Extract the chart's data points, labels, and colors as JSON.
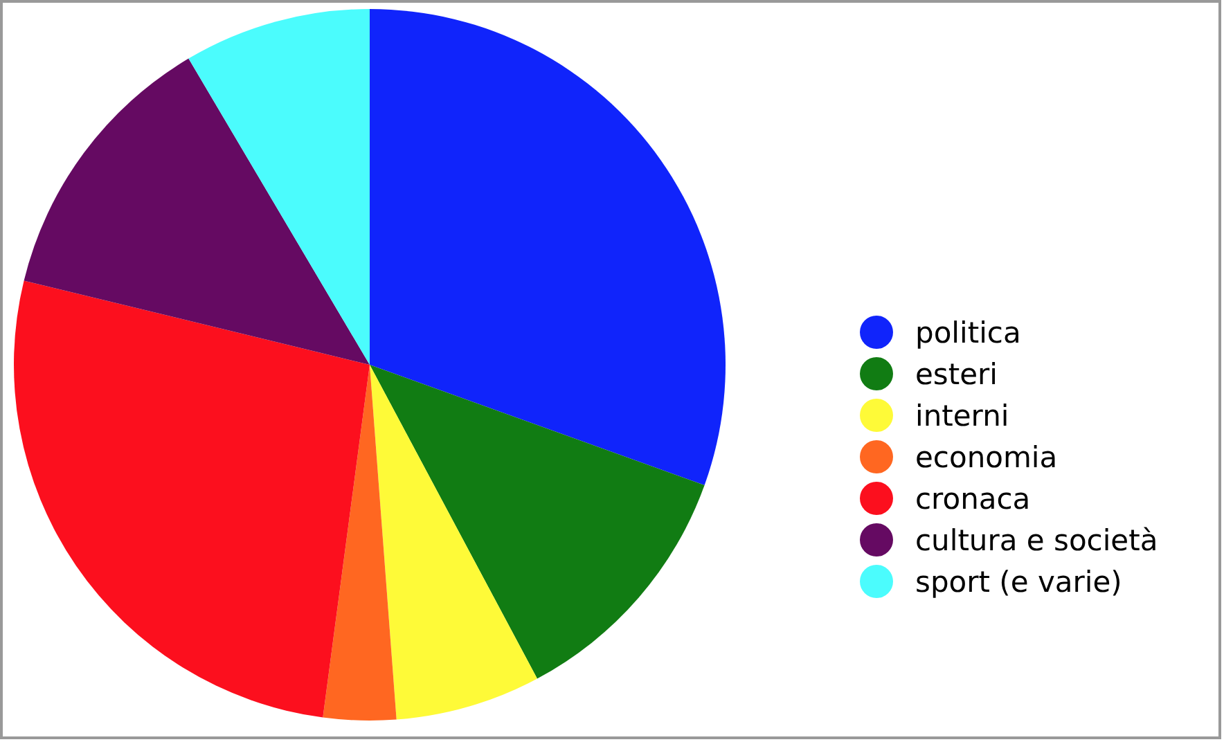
{
  "chart_data": {
    "type": "pie",
    "categories": [
      "politica",
      "esteri",
      "interni",
      "economia",
      "cronaca",
      "cultura e società",
      "sport (e varie)"
    ],
    "values": [
      30.5,
      11.7,
      6.6,
      3.3,
      26.7,
      12.7,
      8.5
    ],
    "colors": [
      "#1024fb",
      "#117c13",
      "#fefa38",
      "#ff6721",
      "#fc0f1e",
      "#650a62",
      "#4bfcfd"
    ],
    "legend": "right"
  }
}
